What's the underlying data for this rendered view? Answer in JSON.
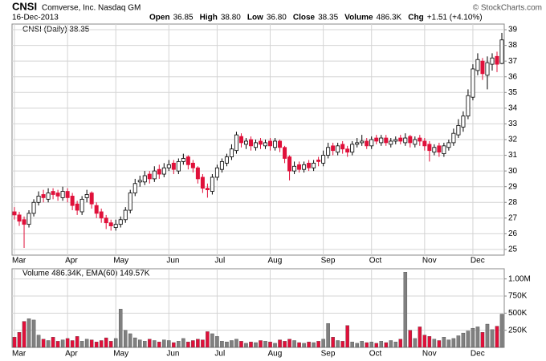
{
  "header": {
    "symbol": "CNSI",
    "company": "Comverse, Inc. Nasdaq GM",
    "date": "16-Dec-2013",
    "stats": [
      {
        "label": "Open",
        "value": "36.85"
      },
      {
        "label": "High",
        "value": "38.80"
      },
      {
        "label": "Low",
        "value": "36.80"
      },
      {
        "label": "Close",
        "value": "38.35"
      },
      {
        "label": "Volume",
        "value": "486.3K"
      },
      {
        "label": "Chg",
        "value": "+1.51 (+4.10%)"
      }
    ],
    "copyright": "© StockCharts.com"
  },
  "chart_data": [
    {
      "type": "candlestick",
      "legend": "CNSI (Daily) 38.35",
      "categories": [
        "Mar",
        null,
        null,
        null,
        null,
        null,
        null,
        null,
        null,
        null,
        null,
        "Apr",
        null,
        null,
        null,
        null,
        null,
        null,
        null,
        null,
        null,
        "May",
        null,
        null,
        null,
        null,
        null,
        null,
        null,
        null,
        null,
        null,
        "Jun",
        null,
        null,
        null,
        null,
        null,
        null,
        null,
        null,
        null,
        "Jul",
        null,
        null,
        null,
        null,
        null,
        null,
        null,
        null,
        null,
        null,
        "Aug",
        null,
        null,
        null,
        null,
        null,
        null,
        null,
        null,
        null,
        null,
        "Sep",
        null,
        null,
        null,
        null,
        null,
        null,
        null,
        null,
        null,
        "Oct",
        null,
        null,
        null,
        null,
        null,
        null,
        null,
        null,
        null,
        null,
        "Nov",
        null,
        null,
        null,
        null,
        null,
        null,
        null,
        null,
        null,
        "Dec",
        null,
        null,
        null,
        null,
        null,
        null
      ],
      "open": [
        27.4,
        27.2,
        26.9,
        26.6,
        27.3,
        28.0,
        28.5,
        28.2,
        28.7,
        28.6,
        28.3,
        28.7,
        28.4,
        27.9,
        27.4,
        28.3,
        28.6,
        27.8,
        27.4,
        27.0,
        26.7,
        26.4,
        26.6,
        26.9,
        27.5,
        28.6,
        29.3,
        29.3,
        29.8,
        29.5,
        30.1,
        29.8,
        30.2,
        30.5,
        30.0,
        30.6,
        30.9,
        30.5,
        30.2,
        29.6,
        28.9,
        28.7,
        29.6,
        30.1,
        30.5,
        30.9,
        31.3,
        32.2,
        31.7,
        32.0,
        31.5,
        31.9,
        31.6,
        31.9,
        31.5,
        31.9,
        31.5,
        30.9,
        30.0,
        30.4,
        30.1,
        30.5,
        30.2,
        30.7,
        30.5,
        31.0,
        31.6,
        31.2,
        31.7,
        31.4,
        31.2,
        31.7,
        31.8,
        31.9,
        31.6,
        32.1,
        31.8,
        32.1,
        31.7,
        31.9,
        32.1,
        31.8,
        32.2,
        31.7,
        32.1,
        31.9,
        31.7,
        31.2,
        31.6,
        31.1,
        31.5,
        31.8,
        32.3,
        32.8,
        33.5,
        34.7,
        36.4,
        37.0,
        36.1,
        36.8,
        37.3,
        36.85
      ],
      "high": [
        27.7,
        27.4,
        27.1,
        27.5,
        28.2,
        28.7,
        28.8,
        28.9,
        28.9,
        28.8,
        29.0,
        28.9,
        28.6,
        28.1,
        28.4,
        28.8,
        28.7,
        28.0,
        27.6,
        27.2,
        26.9,
        26.9,
        27.1,
        27.7,
        28.8,
        29.5,
        29.7,
        30.0,
        30.0,
        30.3,
        30.4,
        30.5,
        30.7,
        30.7,
        30.8,
        31.1,
        31.0,
        30.7,
        30.3,
        29.8,
        29.2,
        29.8,
        30.4,
        30.8,
        31.1,
        31.7,
        32.5,
        32.4,
        32.1,
        32.2,
        32.0,
        32.1,
        32.0,
        32.1,
        32.1,
        32.0,
        31.6,
        31.0,
        30.6,
        30.6,
        30.6,
        30.7,
        30.7,
        30.9,
        31.3,
        31.8,
        31.8,
        31.8,
        31.9,
        31.6,
        31.9,
        32.1,
        32.3,
        32.1,
        32.2,
        32.3,
        32.3,
        32.3,
        32.1,
        32.2,
        32.3,
        32.4,
        32.3,
        32.2,
        32.3,
        32.1,
        31.9,
        31.7,
        31.8,
        31.8,
        32.0,
        32.7,
        33.3,
        33.8,
        35.2,
        36.8,
        37.5,
        37.2,
        37.3,
        37.5,
        37.6,
        38.8
      ],
      "low": [
        26.9,
        26.5,
        25.1,
        26.4,
        27.1,
        27.8,
        28.0,
        28.0,
        28.2,
        28.1,
        28.1,
        28.0,
        27.5,
        27.2,
        27.2,
        28.0,
        27.6,
        27.0,
        26.7,
        26.3,
        26.2,
        26.2,
        26.4,
        26.7,
        27.3,
        28.4,
        29.0,
        29.1,
        29.2,
        29.3,
        29.5,
        29.6,
        30.0,
        29.8,
        29.8,
        30.4,
        30.1,
        29.9,
        29.2,
        28.6,
        28.3,
        28.5,
        29.4,
        29.9,
        30.3,
        30.7,
        31.1,
        31.5,
        31.4,
        31.3,
        31.3,
        31.4,
        31.4,
        31.3,
        31.3,
        31.2,
        30.5,
        29.4,
        29.8,
        29.9,
        29.9,
        30.0,
        30.0,
        30.3,
        30.3,
        30.8,
        31.0,
        31.0,
        31.1,
        30.9,
        31.0,
        31.5,
        31.6,
        31.4,
        31.4,
        31.7,
        31.6,
        31.6,
        31.5,
        31.7,
        31.7,
        31.6,
        31.5,
        31.5,
        31.6,
        31.3,
        30.6,
        31.0,
        30.9,
        30.9,
        31.3,
        31.6,
        32.1,
        32.5,
        33.3,
        34.5,
        36.1,
        35.8,
        35.2,
        36.4,
        36.3,
        36.8
      ],
      "close": [
        27.2,
        26.8,
        26.6,
        27.3,
        28.0,
        28.4,
        28.3,
        28.6,
        28.5,
        28.4,
        28.7,
        28.3,
        27.8,
        27.5,
        28.2,
        28.5,
        27.9,
        27.3,
        27.0,
        26.7,
        26.5,
        26.6,
        26.9,
        27.5,
        28.6,
        29.2,
        29.4,
        29.7,
        29.5,
        30.0,
        29.8,
        30.2,
        30.4,
        30.1,
        30.6,
        30.8,
        30.4,
        30.2,
        29.5,
        28.9,
        28.8,
        29.6,
        30.2,
        30.6,
        30.9,
        31.4,
        32.3,
        31.8,
        31.9,
        31.6,
        31.8,
        31.7,
        31.8,
        31.6,
        31.9,
        31.5,
        30.8,
        30.0,
        30.3,
        30.1,
        30.4,
        30.2,
        30.5,
        30.6,
        31.0,
        31.5,
        31.3,
        31.6,
        31.4,
        31.2,
        31.7,
        31.8,
        31.9,
        31.6,
        32.0,
        31.9,
        32.1,
        31.8,
        31.9,
        32.0,
        31.9,
        32.1,
        31.8,
        32.0,
        31.9,
        31.6,
        31.3,
        31.5,
        31.2,
        31.6,
        31.8,
        32.4,
        32.9,
        33.5,
        34.8,
        36.5,
        37.1,
        36.2,
        36.9,
        37.2,
        36.8,
        38.35
      ],
      "ylim": [
        24.64,
        39.36
      ],
      "yticks": [
        25,
        26,
        27,
        28,
        29,
        30,
        31,
        32,
        33,
        34,
        35,
        36,
        37,
        38,
        39
      ],
      "up_color": "#000000",
      "down_color": "#e0103a",
      "grid": true
    },
    {
      "type": "volume",
      "legend": "Volume 486.34K, EMA(60) 149.57K",
      "values": [
        150000,
        220000,
        380000,
        420000,
        400000,
        180000,
        120000,
        100000,
        150000,
        90000,
        110000,
        130000,
        100000,
        160000,
        90000,
        120000,
        110000,
        80000,
        100000,
        140000,
        90000,
        130000,
        560000,
        250000,
        200000,
        140000,
        110000,
        90000,
        120000,
        100000,
        80000,
        110000,
        100000,
        70000,
        90000,
        130000,
        80000,
        100000,
        120000,
        110000,
        230000,
        200000,
        160000,
        90000,
        80000,
        100000,
        120000,
        90000,
        60000,
        80000,
        70000,
        100000,
        90000,
        80000,
        60000,
        110000,
        90000,
        120000,
        100000,
        70000,
        60000,
        80000,
        70000,
        90000,
        120000,
        350000,
        150000,
        100000,
        90000,
        320000,
        80000,
        60000,
        90000,
        70000,
        80000,
        60000,
        90000,
        70000,
        100000,
        80000,
        120000,
        1100000,
        250000,
        130000,
        300000,
        180000,
        160000,
        120000,
        100000,
        150000,
        110000,
        130000,
        170000,
        210000,
        240000,
        280000,
        300000,
        220000,
        340000,
        260000,
        310000,
        486340
      ],
      "ylim": [
        0,
        1149000
      ],
      "yticks": [
        {
          "value": 250000,
          "label": "250K"
        },
        {
          "value": 500000,
          "label": "500K"
        },
        {
          "value": 750000,
          "label": "750K"
        },
        {
          "value": 1000000,
          "label": "1.00M"
        }
      ],
      "up_color": "#808080",
      "down_color": "#e0103a",
      "grid": true
    }
  ]
}
